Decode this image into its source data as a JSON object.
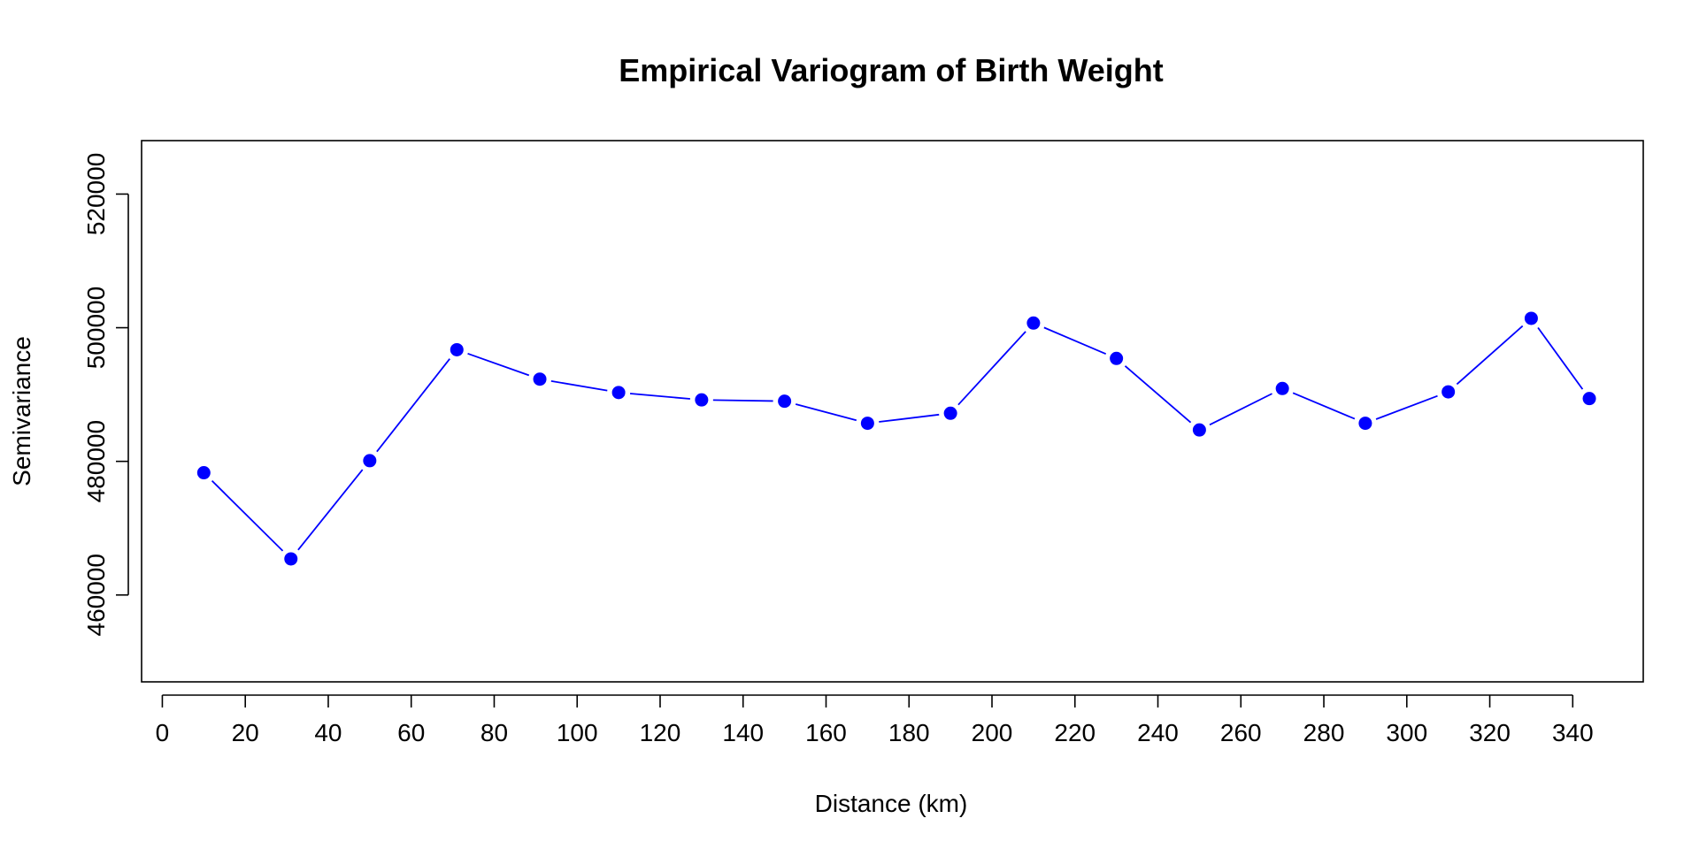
{
  "chart_data": {
    "type": "line",
    "title": "Empirical Variogram of Birth Weight",
    "xlabel": "Distance (km)",
    "ylabel": "Semivariance",
    "xlim": [
      -5,
      357
    ],
    "ylim": [
      447000,
      528000
    ],
    "xticks": [
      0,
      20,
      40,
      60,
      80,
      100,
      120,
      140,
      160,
      180,
      200,
      220,
      240,
      260,
      280,
      300,
      320,
      340
    ],
    "yticks": [
      460000,
      480000,
      500000,
      520000
    ],
    "grid": false,
    "color": "#0000ff",
    "x": [
      10,
      31,
      50,
      71,
      91,
      110,
      130,
      150,
      170,
      190,
      210,
      230,
      250,
      270,
      290,
      310,
      330,
      344
    ],
    "values": [
      478300,
      465400,
      480100,
      496700,
      492300,
      490300,
      489200,
      489000,
      485700,
      487200,
      500700,
      495400,
      484700,
      490900,
      485700,
      490400,
      501400,
      489400
    ]
  }
}
